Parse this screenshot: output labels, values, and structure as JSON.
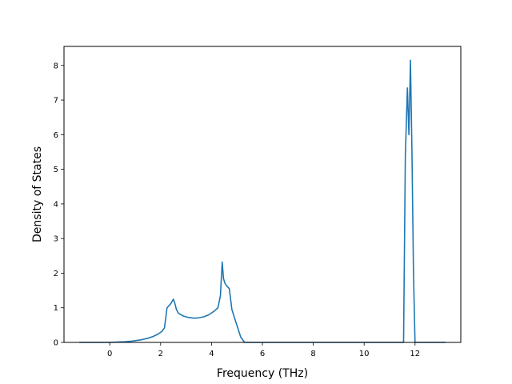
{
  "chart_data": {
    "type": "line",
    "title": "",
    "xlabel": "Frequency (THz)",
    "ylabel": "Density of States",
    "xlim": [
      -1.8,
      13.8
    ],
    "ylim": [
      0,
      8.55
    ],
    "xticks": [
      0,
      2,
      4,
      6,
      8,
      10,
      12
    ],
    "yticks": [
      0,
      1,
      2,
      3,
      4,
      5,
      6,
      7,
      8
    ],
    "grid": false,
    "legend": "none",
    "line_color": "#1f77b4",
    "series": [
      {
        "x": [
          -1.2,
          0.0,
          0.3,
          0.6,
          0.9,
          1.2,
          1.5,
          1.7,
          1.9,
          2.05,
          2.15,
          2.25,
          2.4,
          2.5,
          2.55,
          2.62,
          2.7,
          2.9,
          3.1,
          3.3,
          3.5,
          3.7,
          3.9,
          4.1,
          4.25,
          4.35,
          4.42,
          4.47,
          4.52,
          4.58,
          4.7,
          4.8,
          4.95,
          5.15,
          5.3,
          6.0,
          8.0,
          10.0,
          11.55,
          11.62,
          11.7,
          11.76,
          11.82,
          11.88,
          11.94,
          12.0,
          12.05,
          13.2
        ],
        "y": [
          0.0,
          0.0,
          0.01,
          0.02,
          0.04,
          0.07,
          0.12,
          0.17,
          0.24,
          0.32,
          0.42,
          1.0,
          1.12,
          1.25,
          1.15,
          0.95,
          0.84,
          0.76,
          0.72,
          0.7,
          0.71,
          0.74,
          0.8,
          0.9,
          1.0,
          1.35,
          2.32,
          1.85,
          1.72,
          1.65,
          1.55,
          0.95,
          0.6,
          0.15,
          0.0,
          0.0,
          0.0,
          0.0,
          0.0,
          5.4,
          7.35,
          6.0,
          8.15,
          5.5,
          2.0,
          0.0,
          0.0,
          0.0
        ]
      }
    ]
  }
}
